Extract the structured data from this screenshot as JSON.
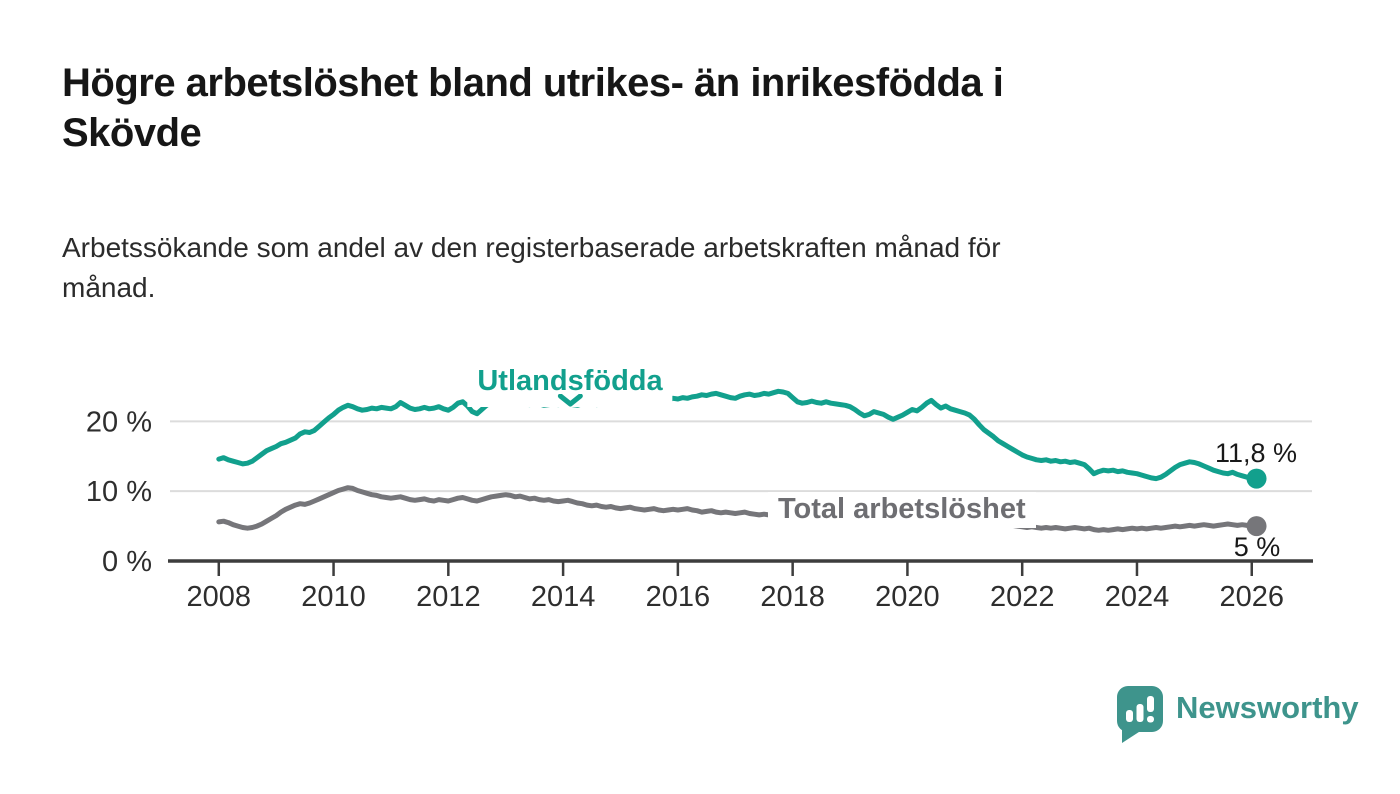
{
  "header": {
    "title_line1": "Högre arbetslöshet bland utrikes- än inrikesfödda i",
    "title_line2": "Skövde",
    "subtitle_line1": "Arbetssökande som andel av den registerbaserade arbetskraften månad för",
    "subtitle_line2": "månad."
  },
  "chart_data": {
    "type": "line",
    "title": "Högre arbetslöshet bland utrikes- än inrikesfödda i Skövde",
    "subtitle": "Arbetssökande som andel av den registerbaserade arbetskraften månad för månad.",
    "xlabel": "",
    "ylabel": "",
    "x_domain": [
      2007.15,
      2027.05
    ],
    "ylim": [
      0,
      28.5
    ],
    "grid": "horizontal-only",
    "legend": "inline-labels-on-lines",
    "x_ticks": [
      2008,
      2010,
      2012,
      2014,
      2016,
      2018,
      2020,
      2022,
      2024,
      2026
    ],
    "y_ticks": [
      {
        "value": 0,
        "label": "0 %"
      },
      {
        "value": 10,
        "label": "10 %"
      },
      {
        "value": 20,
        "label": "20 %"
      }
    ],
    "y_gridlines": [
      10,
      20
    ],
    "series": [
      {
        "name": "Utlandsfödda",
        "color": "#12a08d",
        "start_year": 2008,
        "interval": "monthly",
        "end_label": "11,8 %",
        "end_value": 11.8,
        "values": [
          14.6,
          14.8,
          14.5,
          14.3,
          14.1,
          13.9,
          14.0,
          14.3,
          14.8,
          15.3,
          15.8,
          16.1,
          16.4,
          16.8,
          17.0,
          17.3,
          17.6,
          18.2,
          18.5,
          18.4,
          18.7,
          19.3,
          19.9,
          20.5,
          21.0,
          21.6,
          22.0,
          22.3,
          22.1,
          21.8,
          21.6,
          21.7,
          21.9,
          21.8,
          22.0,
          21.9,
          21.8,
          22.1,
          22.7,
          22.3,
          21.9,
          21.7,
          21.8,
          22.0,
          21.8,
          21.9,
          22.1,
          21.8,
          21.6,
          22.0,
          22.6,
          22.8,
          22.2,
          21.4,
          21.1,
          21.7,
          22.3,
          22.7,
          23.0,
          23.2,
          23.1,
          22.8,
          22.6,
          22.7,
          22.5,
          22.4,
          22.6,
          22.5,
          22.3,
          22.4,
          22.5,
          22.4,
          22.5,
          22.6,
          22.4,
          22.3,
          22.5,
          22.7,
          22.6,
          22.4,
          22.5,
          22.6,
          22.8,
          22.7,
          22.6,
          22.8,
          22.9,
          22.7,
          22.8,
          23.0,
          22.9,
          23.1,
          23.0,
          23.2,
          23.1,
          23.3,
          23.2,
          23.4,
          23.3,
          23.5,
          23.6,
          23.8,
          23.7,
          23.9,
          24.0,
          23.8,
          23.6,
          23.4,
          23.3,
          23.6,
          23.8,
          23.9,
          23.7,
          23.8,
          24.0,
          23.9,
          24.1,
          24.3,
          24.2,
          24.0,
          23.4,
          22.8,
          22.6,
          22.7,
          22.9,
          22.7,
          22.6,
          22.8,
          22.6,
          22.5,
          22.4,
          22.3,
          22.1,
          21.7,
          21.2,
          20.8,
          21.0,
          21.4,
          21.2,
          21.0,
          20.6,
          20.3,
          20.6,
          20.9,
          21.3,
          21.7,
          21.5,
          22.0,
          22.6,
          23.0,
          22.4,
          21.9,
          22.2,
          21.8,
          21.6,
          21.4,
          21.2,
          20.9,
          20.3,
          19.5,
          18.8,
          18.3,
          17.8,
          17.2,
          16.8,
          16.4,
          16.0,
          15.6,
          15.2,
          14.9,
          14.7,
          14.5,
          14.4,
          14.5,
          14.3,
          14.4,
          14.2,
          14.3,
          14.1,
          14.2,
          14.0,
          13.8,
          13.2,
          12.5,
          12.8,
          13.0,
          12.9,
          13.0,
          12.8,
          12.9,
          12.7,
          12.6,
          12.5,
          12.3,
          12.1,
          11.9,
          11.8,
          12.0,
          12.4,
          12.9,
          13.4,
          13.8,
          14.0,
          14.2,
          14.1,
          13.9,
          13.6,
          13.3,
          13.0,
          12.8,
          12.6,
          12.5,
          12.7,
          12.4,
          12.2,
          12.0,
          12.1,
          11.8
        ]
      },
      {
        "name": "Total arbetslöshet",
        "color": "#76767a",
        "start_year": 2008,
        "interval": "monthly",
        "end_label": "5 %",
        "end_value": 5.0,
        "values": [
          5.6,
          5.7,
          5.5,
          5.2,
          5.0,
          4.8,
          4.7,
          4.8,
          5.0,
          5.3,
          5.7,
          6.1,
          6.5,
          7.0,
          7.4,
          7.7,
          8.0,
          8.2,
          8.1,
          8.3,
          8.6,
          8.9,
          9.2,
          9.5,
          9.8,
          10.1,
          10.3,
          10.5,
          10.4,
          10.1,
          9.9,
          9.7,
          9.5,
          9.4,
          9.2,
          9.1,
          9.0,
          9.1,
          9.2,
          9.0,
          8.8,
          8.7,
          8.8,
          8.9,
          8.7,
          8.6,
          8.8,
          8.7,
          8.6,
          8.8,
          9.0,
          9.1,
          8.9,
          8.7,
          8.6,
          8.8,
          9.0,
          9.2,
          9.3,
          9.4,
          9.5,
          9.4,
          9.2,
          9.3,
          9.1,
          8.9,
          9.0,
          8.8,
          8.7,
          8.8,
          8.6,
          8.5,
          8.6,
          8.7,
          8.5,
          8.3,
          8.2,
          8.0,
          7.9,
          8.0,
          7.8,
          7.7,
          7.8,
          7.6,
          7.5,
          7.6,
          7.7,
          7.5,
          7.4,
          7.3,
          7.4,
          7.5,
          7.3,
          7.2,
          7.3,
          7.4,
          7.3,
          7.4,
          7.5,
          7.3,
          7.2,
          7.0,
          7.1,
          7.2,
          7.0,
          6.9,
          7.0,
          6.9,
          6.8,
          6.9,
          7.0,
          6.8,
          6.7,
          6.6,
          6.7,
          6.6,
          6.5,
          6.4,
          6.5,
          6.4,
          6.3,
          6.2,
          6.1,
          6.0,
          5.9,
          5.8,
          5.9,
          5.8,
          5.7,
          5.6,
          5.7,
          5.6,
          5.5,
          5.6,
          5.5,
          5.4,
          5.5,
          5.6,
          5.5,
          5.4,
          5.5,
          5.6,
          5.7,
          5.8,
          6.0,
          6.3,
          6.8,
          7.4,
          7.8,
          8.0,
          7.9,
          7.7,
          7.5,
          7.3,
          7.1,
          6.9,
          6.7,
          6.5,
          6.3,
          6.1,
          5.9,
          5.7,
          5.5,
          5.4,
          5.3,
          5.2,
          5.1,
          5.0,
          4.9,
          4.8,
          4.9,
          4.8,
          4.7,
          4.8,
          4.7,
          4.8,
          4.7,
          4.6,
          4.7,
          4.8,
          4.7,
          4.6,
          4.7,
          4.5,
          4.4,
          4.5,
          4.4,
          4.5,
          4.6,
          4.5,
          4.6,
          4.7,
          4.6,
          4.7,
          4.6,
          4.7,
          4.8,
          4.7,
          4.8,
          4.9,
          5.0,
          4.9,
          5.0,
          5.1,
          5.0,
          5.1,
          5.2,
          5.1,
          5.0,
          5.1,
          5.2,
          5.3,
          5.2,
          5.1,
          5.2,
          5.1,
          5.0,
          5.0
        ]
      }
    ]
  },
  "footer": {
    "brand": "Newsworthy"
  },
  "colors": {
    "teal_line": "#12a08d",
    "gray_line": "#76767a",
    "gray_label": "#6e6e72",
    "brand_teal": "#3e948c",
    "gridline": "#dcdcdc",
    "axis": "#3d3d3d",
    "text_dark": "#161616"
  }
}
